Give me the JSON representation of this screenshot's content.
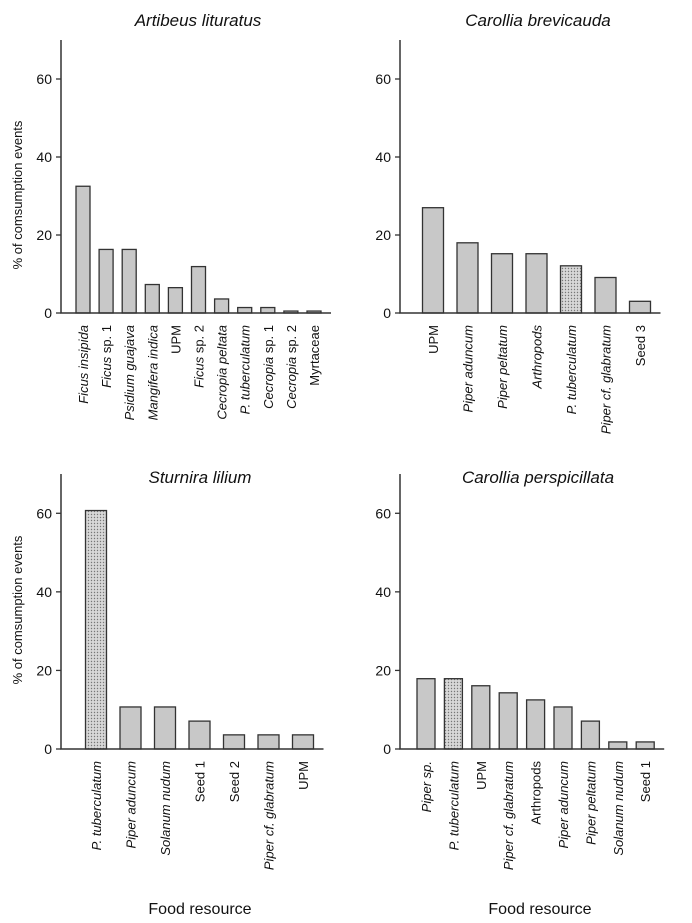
{
  "chart_data": [
    {
      "type": "bar",
      "title": "Artibeus lituratus",
      "ylabel": "% of comsumption events",
      "xlabel": "",
      "ylim": [
        0,
        70
      ],
      "yticks": [
        0,
        20,
        40,
        60
      ],
      "categories": [
        "Ficus insipida",
        "Ficus sp. 1",
        "Psidium guajava",
        "Mangifera indica",
        "UPM",
        "Ficus sp. 2",
        "Cecropia peltata",
        "P. tuberculatum",
        "Cecropia sp. 1",
        "Cecropia sp. 2",
        "Myrtaceae"
      ],
      "values": [
        32.5,
        16.3,
        16.3,
        7.3,
        6.5,
        11.9,
        3.6,
        1.4,
        1.4,
        0.5,
        0.5
      ],
      "italic": [
        true,
        "partial",
        true,
        true,
        false,
        "partial",
        true,
        true,
        "partial",
        "partial",
        false
      ],
      "highlight": [
        false,
        false,
        false,
        false,
        false,
        false,
        false,
        false,
        false,
        false,
        false
      ]
    },
    {
      "type": "bar",
      "title": "Carollia brevicauda",
      "ylabel": "",
      "xlabel": "",
      "ylim": [
        0,
        70
      ],
      "yticks": [
        0,
        20,
        40,
        60
      ],
      "categories": [
        "UPM",
        "Piper aduncum",
        "Piper peltatum",
        "Arthropods",
        "P. tuberculatum",
        "Piper cf. glabratum",
        "Seed 3"
      ],
      "values": [
        27,
        18,
        15.2,
        15.2,
        12.1,
        9.1,
        3
      ],
      "italic": [
        false,
        true,
        true,
        true,
        true,
        true,
        false
      ],
      "highlight": [
        false,
        false,
        false,
        false,
        true,
        false,
        false
      ]
    },
    {
      "type": "bar",
      "title": "Sturnira lilium",
      "ylabel": "% of comsumption events",
      "xlabel": "Food resource",
      "ylim": [
        0,
        70
      ],
      "yticks": [
        0,
        20,
        40,
        60
      ],
      "categories": [
        "P. tuberculatum",
        "Piper aduncum",
        "Solanum nudum",
        "Seed 1",
        "Seed 2",
        "Piper cf. glabratum",
        "UPM"
      ],
      "values": [
        60.7,
        10.7,
        10.7,
        7.1,
        3.6,
        3.6,
        3.6
      ],
      "italic": [
        true,
        true,
        true,
        false,
        false,
        true,
        false
      ],
      "highlight": [
        true,
        false,
        false,
        false,
        false,
        false,
        false
      ]
    },
    {
      "type": "bar",
      "title": "Carollia perspicillata",
      "ylabel": "",
      "xlabel": "Food resource",
      "ylim": [
        0,
        70
      ],
      "yticks": [
        0,
        20,
        40,
        60
      ],
      "categories": [
        "Piper sp.",
        "P. tuberculatum",
        "UPM",
        "Piper cf. glabratum",
        "Arthropods",
        "Piper aduncum",
        "Piper peltatum",
        "Solanum nudum",
        "Seed 1"
      ],
      "values": [
        17.9,
        17.9,
        16.1,
        14.3,
        12.5,
        10.7,
        7.1,
        1.8,
        1.8
      ],
      "italic": [
        true,
        true,
        false,
        true,
        false,
        true,
        true,
        true,
        false
      ],
      "highlight": [
        false,
        true,
        false,
        false,
        false,
        false,
        false,
        false,
        false
      ]
    }
  ],
  "colors": {
    "bar_fill": "#c8c8c8",
    "bar_stroke": "#333333",
    "axis": "#333333"
  }
}
